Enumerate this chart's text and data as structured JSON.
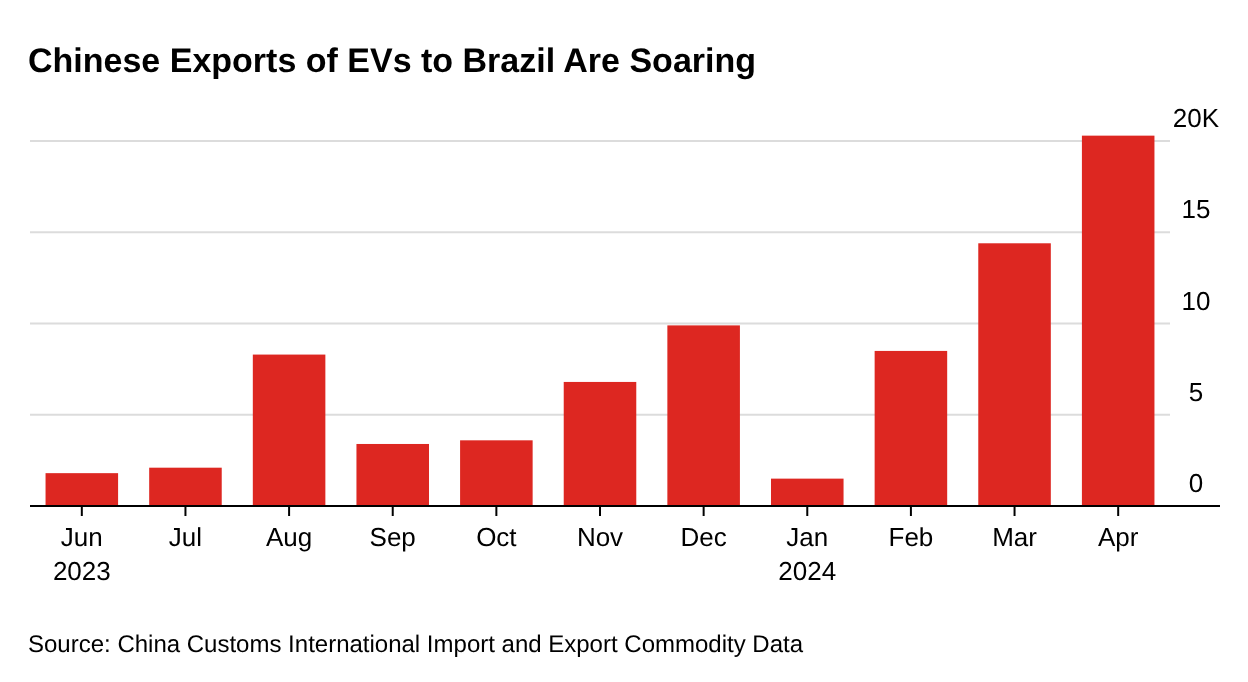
{
  "chart_data": {
    "type": "bar",
    "title": "Chinese Exports of EVs to Brazil Are Soaring",
    "categories": [
      "Jun 2023",
      "Jul",
      "Aug",
      "Sep",
      "Oct",
      "Nov",
      "Dec",
      "Jan 2024",
      "Feb",
      "Mar",
      "Apr"
    ],
    "values": [
      1.8,
      2.1,
      8.3,
      3.4,
      3.6,
      6.8,
      9.9,
      1.5,
      8.5,
      14.4,
      20.3
    ],
    "color": "#dd2721",
    "ylim": [
      0,
      20.5
    ],
    "yticks": [
      0,
      5,
      10,
      15,
      {
        "value": 20,
        "label": "20K"
      }
    ],
    "grid": "y",
    "annotations": [
      "Source: China Customs International Import and Export Commodity Data"
    ]
  }
}
